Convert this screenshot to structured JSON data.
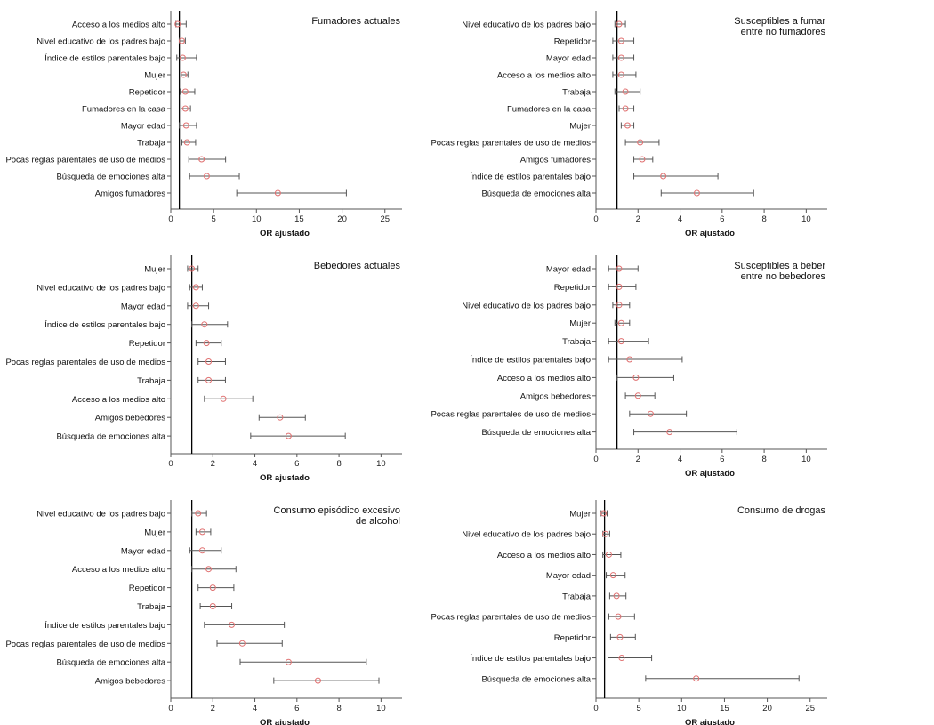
{
  "chart_data": [
    {
      "type": "forest",
      "title": "Fumadores actuales",
      "xlabel": "OR ajustado",
      "xlim": [
        0,
        27
      ],
      "xticks": [
        0,
        5,
        10,
        15,
        20,
        25
      ],
      "reference_line": 1,
      "rows": [
        {
          "label": "Acceso a los medios alto",
          "or": 0.8,
          "lo": 0.6,
          "hi": 1.8
        },
        {
          "label": "Nivel educativo de los padres bajo",
          "or": 1.3,
          "lo": 1.0,
          "hi": 1.7
        },
        {
          "label": "Índice de estilos parentales bajo",
          "or": 1.4,
          "lo": 0.7,
          "hi": 3.0
        },
        {
          "label": "Mujer",
          "or": 1.5,
          "lo": 1.2,
          "hi": 2.0
        },
        {
          "label": "Repetidor",
          "or": 1.7,
          "lo": 1.1,
          "hi": 2.8
        },
        {
          "label": "Fumadores en la casa",
          "or": 1.7,
          "lo": 1.2,
          "hi": 2.3
        },
        {
          "label": "Mayor edad",
          "or": 1.8,
          "lo": 1.0,
          "hi": 3.0
        },
        {
          "label": "Trabaja",
          "or": 1.9,
          "lo": 1.3,
          "hi": 2.9
        },
        {
          "label": "Pocas reglas parentales de uso de medios",
          "or": 3.6,
          "lo": 2.1,
          "hi": 6.4
        },
        {
          "label": "Búsqueda de emociones alta",
          "or": 4.2,
          "lo": 2.2,
          "hi": 8.0
        },
        {
          "label": "Amigos fumadores",
          "or": 12.5,
          "lo": 7.7,
          "hi": 20.5
        }
      ]
    },
    {
      "type": "forest",
      "title": "Susceptibles a fumar\nentre no fumadores",
      "xlabel": "OR ajustado",
      "xlim": [
        0,
        11
      ],
      "xticks": [
        0,
        2,
        4,
        6,
        8,
        10
      ],
      "reference_line": 1,
      "rows": [
        {
          "label": "Nivel educativo de los padres bajo",
          "or": 1.1,
          "lo": 0.9,
          "hi": 1.4
        },
        {
          "label": "Repetidor",
          "or": 1.2,
          "lo": 0.8,
          "hi": 1.8
        },
        {
          "label": "Mayor edad",
          "or": 1.2,
          "lo": 0.8,
          "hi": 1.8
        },
        {
          "label": "Acceso a los medios alto",
          "or": 1.2,
          "lo": 0.8,
          "hi": 1.9
        },
        {
          "label": "Trabaja",
          "or": 1.4,
          "lo": 0.9,
          "hi": 2.1
        },
        {
          "label": "Fumadores en la casa",
          "or": 1.4,
          "lo": 1.1,
          "hi": 1.8
        },
        {
          "label": "Mujer",
          "or": 1.5,
          "lo": 1.2,
          "hi": 1.8
        },
        {
          "label": "Pocas reglas parentales de uso de medios",
          "or": 2.1,
          "lo": 1.4,
          "hi": 3.0
        },
        {
          "label": "Amigos fumadores",
          "or": 2.2,
          "lo": 1.8,
          "hi": 2.7
        },
        {
          "label": "Índice de estilos parentales bajo",
          "or": 3.2,
          "lo": 1.8,
          "hi": 5.8
        },
        {
          "label": "Búsqueda de emociones alta",
          "or": 4.8,
          "lo": 3.1,
          "hi": 7.5
        }
      ]
    },
    {
      "type": "forest",
      "title": "Bebedores actuales",
      "xlabel": "OR ajustado",
      "xlim": [
        0,
        11
      ],
      "xticks": [
        0,
        2,
        4,
        6,
        8,
        10
      ],
      "reference_line": 1,
      "rows": [
        {
          "label": "Mujer",
          "or": 1.0,
          "lo": 0.8,
          "hi": 1.3
        },
        {
          "label": "Nivel educativo de los padres bajo",
          "or": 1.2,
          "lo": 0.9,
          "hi": 1.5
        },
        {
          "label": "Mayor edad",
          "or": 1.2,
          "lo": 0.8,
          "hi": 1.8
        },
        {
          "label": "Índice de estilos parentales bajo",
          "or": 1.6,
          "lo": 1.0,
          "hi": 2.7
        },
        {
          "label": "Repetidor",
          "or": 1.7,
          "lo": 1.2,
          "hi": 2.4
        },
        {
          "label": "Pocas reglas parentales de uso de medios",
          "or": 1.8,
          "lo": 1.3,
          "hi": 2.6
        },
        {
          "label": "Trabaja",
          "or": 1.8,
          "lo": 1.3,
          "hi": 2.6
        },
        {
          "label": "Acceso a los medios alto",
          "or": 2.5,
          "lo": 1.6,
          "hi": 3.9
        },
        {
          "label": "Amigos bebedores",
          "or": 5.2,
          "lo": 4.2,
          "hi": 6.4
        },
        {
          "label": "Búsqueda de emociones alta",
          "or": 5.6,
          "lo": 3.8,
          "hi": 8.3
        }
      ]
    },
    {
      "type": "forest",
      "title": "Susceptibles a beber\nentre no bebedores",
      "xlabel": "OR ajustado",
      "xlim": [
        0,
        11
      ],
      "xticks": [
        0,
        2,
        4,
        6,
        8,
        10
      ],
      "reference_line": 1,
      "rows": [
        {
          "label": "Mayor edad",
          "or": 1.1,
          "lo": 0.6,
          "hi": 2.0
        },
        {
          "label": "Repetidor",
          "or": 1.1,
          "lo": 0.6,
          "hi": 1.9
        },
        {
          "label": "Nivel educativo de los padres bajo",
          "or": 1.1,
          "lo": 0.8,
          "hi": 1.6
        },
        {
          "label": "Mujer",
          "or": 1.2,
          "lo": 0.9,
          "hi": 1.6
        },
        {
          "label": "Trabaja",
          "or": 1.2,
          "lo": 0.6,
          "hi": 2.5
        },
        {
          "label": "Índice de estilos parentales bajo",
          "or": 1.6,
          "lo": 0.6,
          "hi": 4.1
        },
        {
          "label": "Acceso a los medios alto",
          "or": 1.9,
          "lo": 1.0,
          "hi": 3.7
        },
        {
          "label": "Amigos bebedores",
          "or": 2.0,
          "lo": 1.4,
          "hi": 2.8
        },
        {
          "label": "Pocas reglas parentales de uso de medios",
          "or": 2.6,
          "lo": 1.6,
          "hi": 4.3
        },
        {
          "label": "Búsqueda de emociones alta",
          "or": 3.5,
          "lo": 1.8,
          "hi": 6.7
        }
      ]
    },
    {
      "type": "forest",
      "title": "Consumo episódico excesivo\nde alcohol",
      "xlabel": "OR ajustado",
      "xlim": [
        0,
        11
      ],
      "xticks": [
        0,
        2,
        4,
        6,
        8,
        10
      ],
      "reference_line": 1,
      "rows": [
        {
          "label": "Nivel educativo de los padres bajo",
          "or": 1.3,
          "lo": 1.0,
          "hi": 1.7
        },
        {
          "label": "Mujer",
          "or": 1.5,
          "lo": 1.2,
          "hi": 1.9
        },
        {
          "label": "Mayor edad",
          "or": 1.5,
          "lo": 0.9,
          "hi": 2.4
        },
        {
          "label": "Acceso a los medios alto",
          "or": 1.8,
          "lo": 1.0,
          "hi": 3.1
        },
        {
          "label": "Repetidor",
          "or": 2.0,
          "lo": 1.3,
          "hi": 3.0
        },
        {
          "label": "Trabaja",
          "or": 2.0,
          "lo": 1.4,
          "hi": 2.9
        },
        {
          "label": "Índice de estilos parentales bajo",
          "or": 2.9,
          "lo": 1.6,
          "hi": 5.4
        },
        {
          "label": "Pocas reglas parentales de uso de medios",
          "or": 3.4,
          "lo": 2.2,
          "hi": 5.3
        },
        {
          "label": "Búsqueda de emociones alta",
          "or": 5.6,
          "lo": 3.3,
          "hi": 9.3
        },
        {
          "label": "Amigos bebedores",
          "or": 7.0,
          "lo": 4.9,
          "hi": 9.9
        }
      ]
    },
    {
      "type": "forest",
      "title": "Consumo de drogas",
      "xlabel": "OR ajustado",
      "xlim": [
        0,
        27
      ],
      "xticks": [
        0,
        5,
        10,
        15,
        20,
        25
      ],
      "reference_line": 1,
      "rows": [
        {
          "label": "Mujer",
          "or": 0.9,
          "lo": 0.6,
          "hi": 1.3
        },
        {
          "label": "Nivel educativo de los padres bajo",
          "or": 1.1,
          "lo": 0.8,
          "hi": 1.6
        },
        {
          "label": "Acceso a los medios alto",
          "or": 1.5,
          "lo": 0.8,
          "hi": 2.9
        },
        {
          "label": "Mayor edad",
          "or": 2.0,
          "lo": 1.2,
          "hi": 3.4
        },
        {
          "label": "Trabaja",
          "or": 2.4,
          "lo": 1.6,
          "hi": 3.5
        },
        {
          "label": "Pocas reglas parentales de uso de medios",
          "or": 2.6,
          "lo": 1.5,
          "hi": 4.5
        },
        {
          "label": "Repetidor",
          "or": 2.8,
          "lo": 1.7,
          "hi": 4.6
        },
        {
          "label": "Índice de estilos parentales bajo",
          "or": 3.0,
          "lo": 1.4,
          "hi": 6.5
        },
        {
          "label": "Búsqueda de emociones alta",
          "or": 11.7,
          "lo": 5.8,
          "hi": 23.7
        }
      ]
    }
  ],
  "colors": {
    "marker": "#e07070",
    "lines": "#555555",
    "reference": "#000000",
    "axis": "#555555"
  }
}
